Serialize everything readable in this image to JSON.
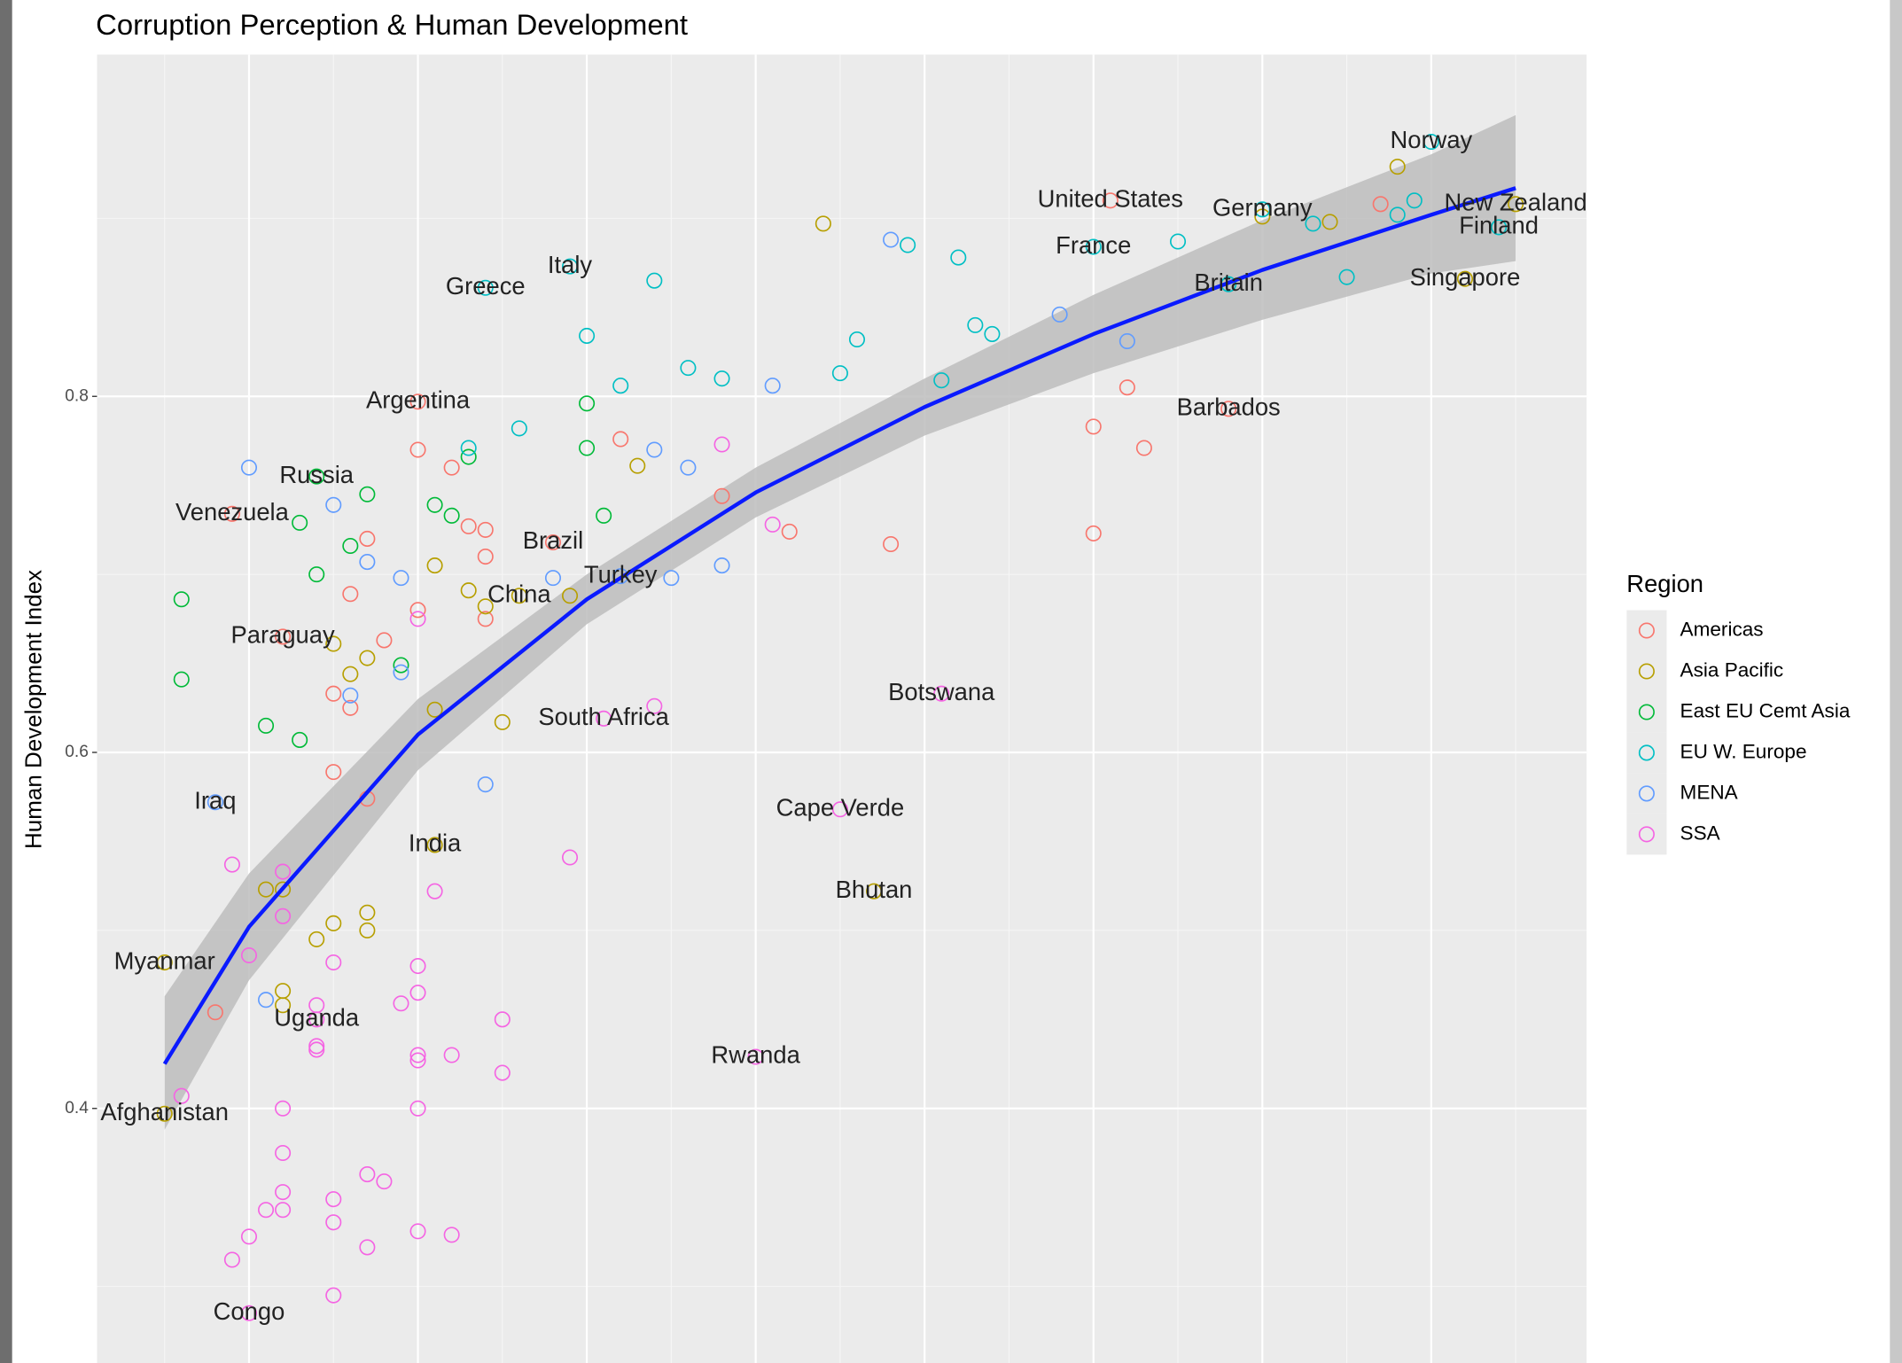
{
  "chart_data": {
    "type": "scatter",
    "title": "Corruption Perception & Human Development",
    "y_label": "Human Development Index",
    "legend_title": "Region",
    "legend": "right",
    "grid": true,
    "xlim": [
      1.1,
      9.92
    ],
    "xticks": [
      2,
      3,
      4,
      5,
      6,
      7,
      8,
      9
    ],
    "ylim": [
      0.257,
      0.992
    ],
    "yticks": [
      0.4,
      0.6,
      0.8
    ],
    "series": [
      {
        "name": "Americas",
        "color": "#F8766D",
        "x": [
          1.9,
          3.0,
          3.0,
          3.2,
          3.3,
          3.4,
          2.7,
          3.4,
          3.8,
          2.6,
          3.0,
          3.4,
          2.8,
          2.2,
          2.5,
          2.6,
          2.5,
          2.7,
          1.8,
          4.2,
          4.8,
          5.2,
          5.8,
          7.0,
          7.2,
          7.3,
          7.0,
          7.8,
          7.1,
          8.7
        ],
        "values": [
          0.734,
          0.797,
          0.77,
          0.76,
          0.727,
          0.725,
          0.72,
          0.71,
          0.718,
          0.689,
          0.68,
          0.675,
          0.663,
          0.665,
          0.633,
          0.625,
          0.589,
          0.574,
          0.454,
          0.776,
          0.744,
          0.724,
          0.717,
          0.783,
          0.805,
          0.771,
          0.723,
          0.793,
          0.91,
          0.908
        ],
        "point_labels": [
          "Venezuela",
          "Argentina",
          null,
          null,
          null,
          null,
          null,
          null,
          "Brazil",
          null,
          null,
          null,
          null,
          "Paraguay",
          null,
          null,
          null,
          null,
          null,
          null,
          null,
          null,
          null,
          null,
          null,
          null,
          null,
          "Barbados",
          "United States",
          null
        ]
      },
      {
        "name": "Asia Pacific",
        "color": "#B79F00",
        "x": [
          1.5,
          1.5,
          2.1,
          2.2,
          2.2,
          2.2,
          2.4,
          2.5,
          2.7,
          2.7,
          3.1,
          2.5,
          2.6,
          2.7,
          3.1,
          3.3,
          3.4,
          3.1,
          3.5,
          3.9,
          3.6,
          4.3,
          5.4,
          5.7,
          8.0,
          8.4,
          8.8,
          9.2,
          9.5
        ],
        "values": [
          0.397,
          0.482,
          0.523,
          0.523,
          0.466,
          0.458,
          0.495,
          0.504,
          0.51,
          0.5,
          0.548,
          0.661,
          0.644,
          0.653,
          0.705,
          0.691,
          0.682,
          0.624,
          0.617,
          0.688,
          0.688,
          0.761,
          0.897,
          0.522,
          0.901,
          0.898,
          0.929,
          0.866,
          0.908
        ],
        "point_labels": [
          "Afghanistan",
          "Myanmar",
          null,
          null,
          null,
          null,
          null,
          null,
          null,
          null,
          "India",
          null,
          null,
          null,
          null,
          null,
          null,
          null,
          null,
          null,
          "China",
          null,
          null,
          "Bhutan",
          null,
          null,
          null,
          "Singapore",
          "New Zealand"
        ]
      },
      {
        "name": "East EU Cemt Asia",
        "color": "#00BA38",
        "x": [
          1.6,
          1.6,
          2.1,
          2.3,
          2.4,
          2.3,
          2.4,
          2.6,
          2.7,
          2.9,
          3.1,
          3.2,
          3.3,
          4.0,
          4.0,
          4.1
        ],
        "values": [
          0.686,
          0.641,
          0.615,
          0.607,
          0.755,
          0.729,
          0.7,
          0.716,
          0.745,
          0.649,
          0.739,
          0.733,
          0.766,
          0.796,
          0.771,
          0.733
        ],
        "point_labels": [
          null,
          null,
          null,
          null,
          "Russia",
          null,
          null,
          null,
          null,
          null,
          null,
          null,
          null,
          null,
          null,
          null
        ]
      },
      {
        "name": "EU W. Europe",
        "color": "#00BFC4",
        "x": [
          3.4,
          3.3,
          3.6,
          3.9,
          4.0,
          4.2,
          4.4,
          4.6,
          4.8,
          5.5,
          5.6,
          5.9,
          6.1,
          6.2,
          6.3,
          6.4,
          7.0,
          7.5,
          7.8,
          8.0,
          8.3,
          8.5,
          8.8,
          8.9,
          9.0,
          9.4
        ],
        "values": [
          0.861,
          0.771,
          0.782,
          0.873,
          0.834,
          0.806,
          0.865,
          0.816,
          0.81,
          0.813,
          0.832,
          0.885,
          0.809,
          0.878,
          0.84,
          0.835,
          0.884,
          0.887,
          0.863,
          0.905,
          0.897,
          0.867,
          0.902,
          0.91,
          0.943,
          0.895
        ],
        "point_labels": [
          "Greece",
          null,
          null,
          "Italy",
          null,
          null,
          null,
          null,
          null,
          null,
          null,
          null,
          null,
          null,
          null,
          null,
          "France",
          null,
          "Britain",
          "Germany",
          null,
          null,
          null,
          null,
          "Norway",
          "Finland"
        ]
      },
      {
        "name": "MENA",
        "color": "#619CFF",
        "x": [
          2.0,
          1.8,
          2.1,
          2.5,
          2.7,
          2.6,
          2.9,
          2.9,
          3.4,
          3.8,
          4.4,
          4.5,
          4.6,
          4.8,
          5.1,
          5.8,
          6.8,
          7.2,
          4.2
        ],
        "values": [
          0.76,
          0.572,
          0.461,
          0.739,
          0.707,
          0.632,
          0.698,
          0.645,
          0.582,
          0.698,
          0.77,
          0.698,
          0.76,
          0.705,
          0.806,
          0.888,
          0.846,
          0.831,
          0.699
        ],
        "point_labels": [
          null,
          "Iraq",
          null,
          null,
          null,
          null,
          null,
          null,
          null,
          null,
          null,
          null,
          null,
          null,
          null,
          null,
          null,
          null,
          "Turkey"
        ]
      },
      {
        "name": "SSA",
        "color": "#F564E3",
        "x": [
          2.0,
          1.9,
          2.0,
          2.1,
          2.2,
          2.2,
          2.2,
          2.2,
          1.6,
          2.0,
          1.9,
          2.2,
          2.2,
          2.4,
          2.4,
          2.4,
          2.4,
          2.5,
          2.5,
          2.5,
          2.5,
          2.7,
          2.8,
          2.7,
          2.9,
          3.0,
          3.0,
          3.0,
          3.0,
          3.0,
          3.0,
          3.2,
          3.2,
          3.1,
          3.5,
          3.5,
          3.0,
          3.9,
          4.1,
          4.4,
          4.8,
          5.1,
          5.5,
          6.1,
          5.0
        ],
        "values": [
          0.285,
          0.315,
          0.328,
          0.343,
          0.343,
          0.353,
          0.375,
          0.4,
          0.407,
          0.486,
          0.537,
          0.533,
          0.508,
          0.45,
          0.458,
          0.435,
          0.433,
          0.482,
          0.349,
          0.336,
          0.295,
          0.363,
          0.359,
          0.322,
          0.459,
          0.48,
          0.465,
          0.43,
          0.427,
          0.4,
          0.331,
          0.329,
          0.43,
          0.522,
          0.45,
          0.42,
          0.675,
          0.541,
          0.619,
          0.626,
          0.773,
          0.728,
          0.568,
          0.633,
          0.429
        ],
        "point_labels": [
          "Congo",
          null,
          null,
          null,
          null,
          null,
          null,
          null,
          null,
          null,
          null,
          null,
          null,
          "Uganda",
          null,
          null,
          null,
          null,
          null,
          null,
          null,
          null,
          null,
          null,
          null,
          null,
          null,
          null,
          null,
          null,
          null,
          null,
          null,
          null,
          null,
          null,
          null,
          null,
          "South Africa",
          null,
          null,
          null,
          "Cape Verde",
          "Botswana",
          "Rwanda"
        ]
      }
    ],
    "fit": {
      "color": "#0a1aff",
      "band_color": "#bdbdbd",
      "x": [
        1.5,
        2,
        3,
        4,
        5,
        6,
        7,
        8,
        9,
        9.5
      ],
      "values": [
        0.425,
        0.502,
        0.61,
        0.686,
        0.746,
        0.794,
        0.835,
        0.871,
        0.902,
        0.917
      ],
      "lower": [
        0.388,
        0.472,
        0.59,
        0.672,
        0.732,
        0.778,
        0.813,
        0.843,
        0.869,
        0.876
      ],
      "upper": [
        0.463,
        0.532,
        0.63,
        0.7,
        0.76,
        0.81,
        0.857,
        0.899,
        0.936,
        0.958
      ]
    }
  }
}
